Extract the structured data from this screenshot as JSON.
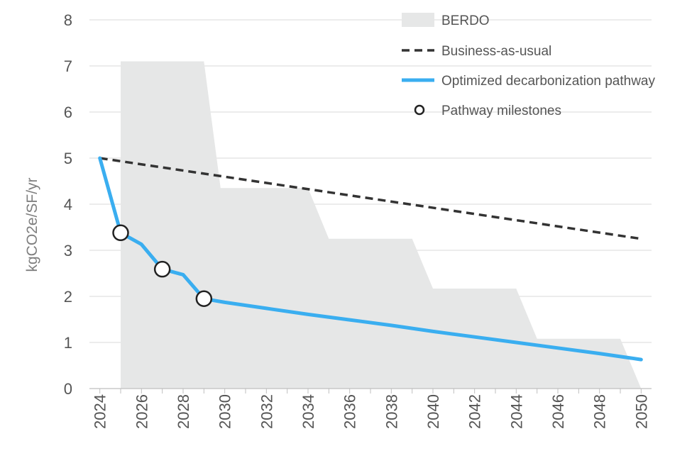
{
  "chart_data": {
    "type": "line",
    "title": "",
    "xlabel": "",
    "ylabel": "kgCO2e/SF/yr",
    "xlim": [
      2023.5,
      2050.5
    ],
    "ylim": [
      0,
      8
    ],
    "x_ticks": [
      "2024",
      "2026",
      "2028",
      "2030",
      "2032",
      "2034",
      "2036",
      "2038",
      "2040",
      "2042",
      "2044",
      "2046",
      "2048",
      "2050"
    ],
    "y_ticks": [
      "0",
      "1",
      "2",
      "3",
      "4",
      "5",
      "6",
      "7",
      "8"
    ],
    "grid": "horizontal",
    "legend_position": "top-right",
    "colors": {
      "berdo": "#e6e7e7",
      "bau": "#333333",
      "pathway": "#3aaef0",
      "grid": "#d9d9d9",
      "axis": "#bfbfbf"
    },
    "series": [
      {
        "name": "BERDO",
        "kind": "area",
        "x": [
          2025,
          2025,
          2029,
          2029.8,
          2034,
          2035,
          2039,
          2040,
          2044,
          2045,
          2049,
          2050
        ],
        "y": [
          0,
          7.1,
          7.1,
          4.35,
          4.35,
          3.25,
          3.25,
          2.17,
          2.17,
          1.08,
          1.08,
          0
        ]
      },
      {
        "name": "Business-as-usual",
        "kind": "dashed-line",
        "x": [
          2024,
          2050
        ],
        "y": [
          5.0,
          3.25
        ]
      },
      {
        "name": "Optimized decarbonization pathway",
        "kind": "line",
        "x": [
          2024,
          2025,
          2026,
          2027,
          2028,
          2029,
          2030,
          2032,
          2034,
          2036,
          2038,
          2040,
          2042,
          2044,
          2046,
          2048,
          2050
        ],
        "y": [
          5.0,
          3.38,
          3.13,
          2.59,
          2.47,
          1.95,
          1.87,
          1.74,
          1.61,
          1.49,
          1.37,
          1.24,
          1.12,
          1.0,
          0.88,
          0.76,
          0.63
        ]
      },
      {
        "name": "Pathway milestones",
        "kind": "markers",
        "x": [
          2025,
          2027,
          2029
        ],
        "y": [
          3.38,
          2.59,
          1.95
        ]
      }
    ]
  }
}
